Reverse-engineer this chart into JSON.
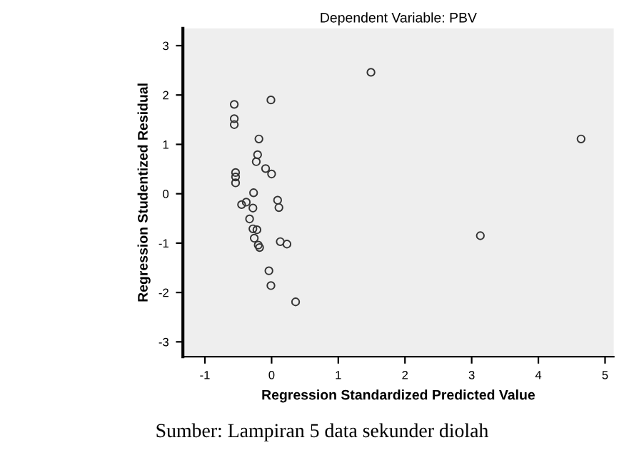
{
  "chart_data": {
    "type": "scatter",
    "title": "Dependent Variable: PBV",
    "xlabel": "Regression Standardized Predicted Value",
    "ylabel": "Regression Studentized Residual",
    "annotations": [
      "Sumber: Lampiran 5 data sekunder diolah"
    ],
    "x": [
      -0.56,
      -0.56,
      -0.56,
      -0.01,
      1.49,
      4.64,
      -0.19,
      -0.21,
      -0.23,
      -0.09,
      0.0,
      -0.54,
      -0.54,
      -0.54,
      -0.27,
      -0.45,
      -0.38,
      -0.28,
      -0.33,
      -0.28,
      -0.22,
      -0.26,
      -0.2,
      -0.18,
      0.09,
      0.11,
      0.13,
      0.23,
      3.13,
      -0.04,
      -0.01,
      0.36
    ],
    "series": [
      {
        "color": "#333333",
        "values": [
          1.81,
          1.52,
          1.4,
          1.9,
          2.46,
          1.11,
          1.11,
          0.79,
          0.65,
          0.51,
          0.4,
          0.43,
          0.34,
          0.22,
          0.02,
          -0.22,
          -0.17,
          -0.29,
          -0.51,
          -0.71,
          -0.73,
          -0.9,
          -1.04,
          -1.09,
          -0.13,
          -0.28,
          -0.97,
          -1.02,
          -0.85,
          -1.56,
          -1.86,
          -2.19
        ]
      }
    ],
    "xlim": [
      -1.33,
      5.13
    ],
    "ylim": [
      -3.3,
      3.35
    ],
    "xticks": [
      -1,
      0,
      1,
      2,
      3,
      4,
      5
    ],
    "yticks": [
      -3,
      -2,
      -1,
      0,
      1,
      2,
      3
    ],
    "marker": "circle",
    "grid": false,
    "legend": false
  }
}
